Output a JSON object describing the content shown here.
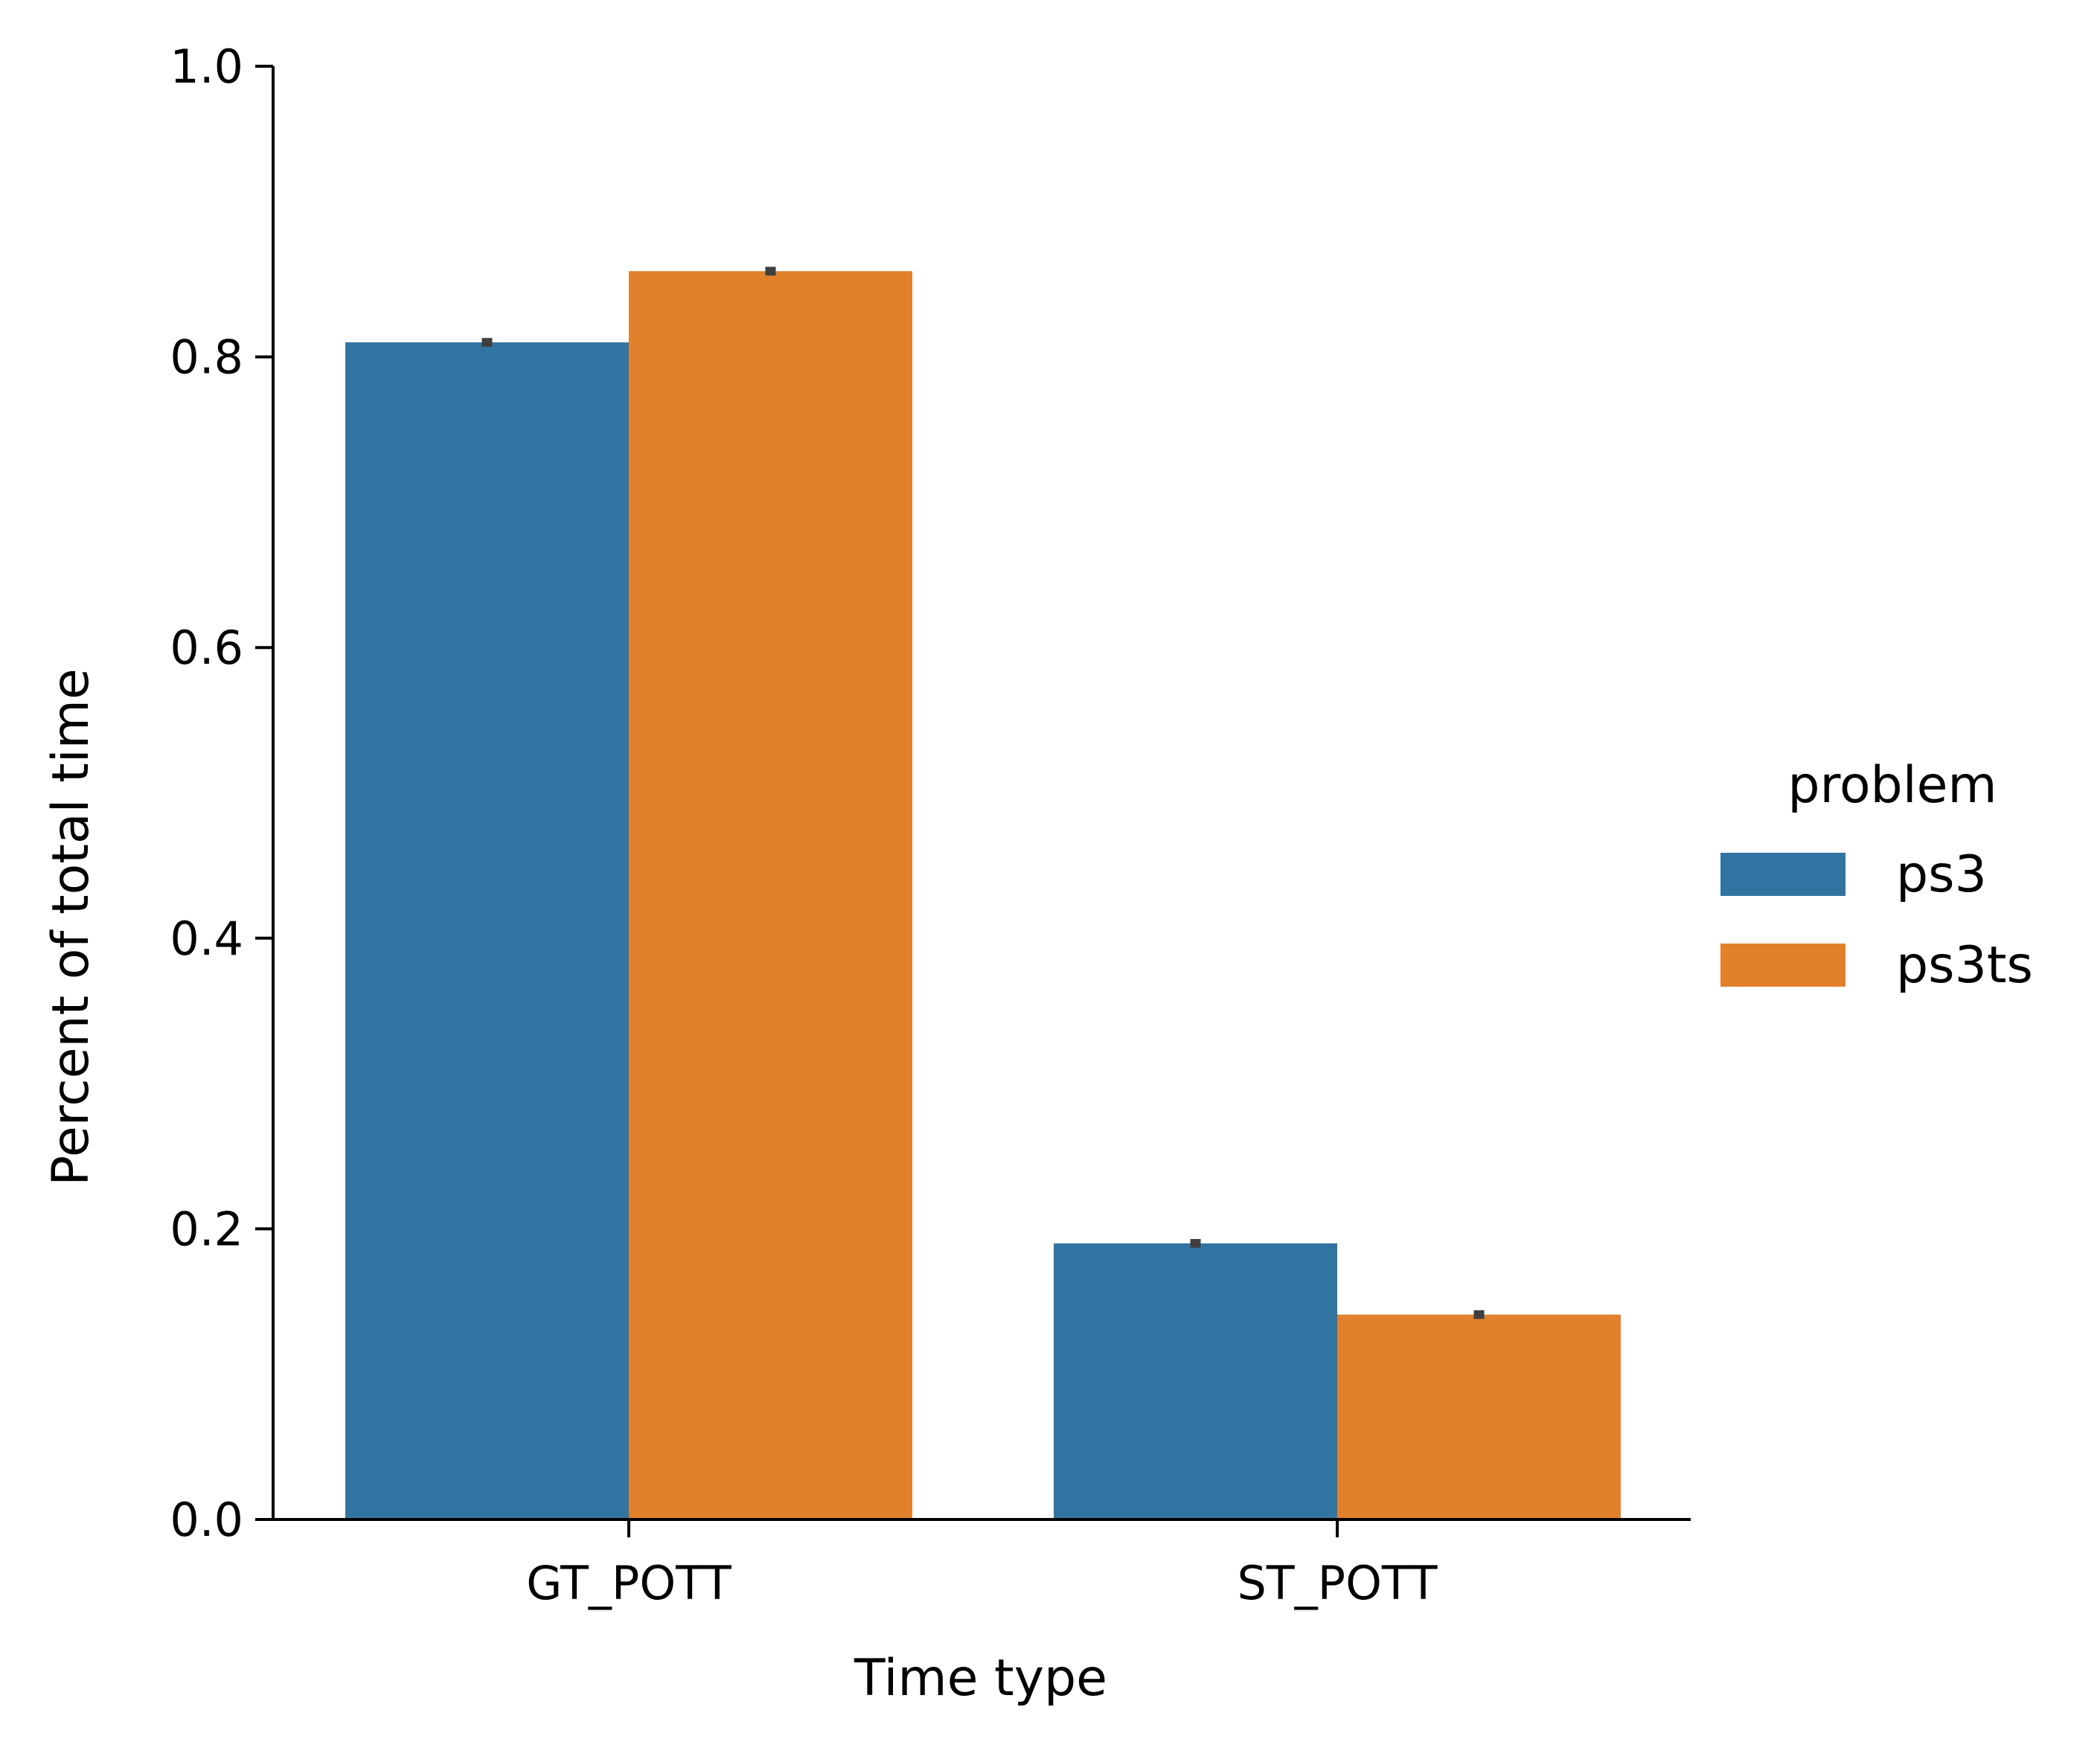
{
  "chart_data": {
    "type": "bar",
    "categories": [
      "GT_POTT",
      "ST_POTT"
    ],
    "series": [
      {
        "name": "ps3",
        "values": [
          0.81,
          0.19
        ],
        "error": [
          0.003,
          0.003
        ],
        "color": "#3274a1"
      },
      {
        "name": "ps3ts",
        "values": [
          0.859,
          0.141
        ],
        "error": [
          0.003,
          0.003
        ],
        "color": "#e1812c"
      }
    ],
    "title": "",
    "xlabel": "Time type",
    "ylabel": "Percent of total time",
    "ylim": [
      0.0,
      1.0
    ],
    "yticks": [
      "0.0",
      "0.2",
      "0.4",
      "0.6",
      "0.8",
      "1.0"
    ],
    "grid": false,
    "legend": {
      "title": "problem",
      "placement": "right"
    },
    "errorbar_color": "#3f3f3f"
  }
}
